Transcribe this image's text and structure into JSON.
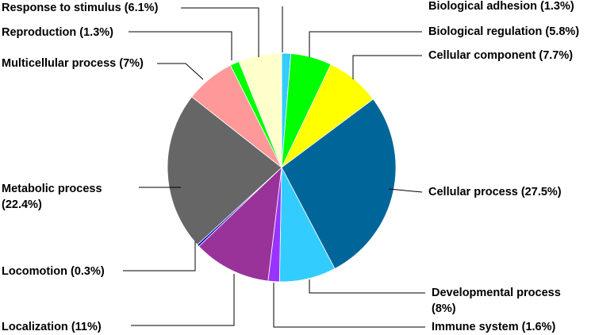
{
  "chart_data": {
    "type": "pie",
    "title": "",
    "legend": "none",
    "start": "12 o'clock",
    "direction": "clockwise",
    "slices": [
      {
        "key": "bio-adhesion",
        "label": "Biological adhesion (1.3%)",
        "value": 1.3,
        "color": "#33ccff"
      },
      {
        "key": "bio-regulation",
        "label": "Biological regulation (5.8%)",
        "value": 5.8,
        "color": "#00ff00"
      },
      {
        "key": "cellular-component",
        "label": "Cellular component (7.7%)",
        "value": 7.7,
        "color": "#ffff00"
      },
      {
        "key": "cellular-process",
        "label": "Cellular process (27.5%)",
        "value": 27.5,
        "color": "#006699"
      },
      {
        "key": "developmental",
        "label": "Developmental process (8%)",
        "value": 8.0,
        "color": "#33ccff"
      },
      {
        "key": "immune-system",
        "label": "Immune system (1.6%)",
        "value": 1.6,
        "color": "#9933ff"
      },
      {
        "key": "localization",
        "label": "Localization  (11%)",
        "value": 11.0,
        "color": "#993399"
      },
      {
        "key": "locomotion",
        "label": "Locomotion (0.3%)",
        "value": 0.3,
        "color": "#0000cc"
      },
      {
        "key": "metabolic",
        "label": "Metabolic process (22.4%)",
        "value": 22.4,
        "color": "#666666"
      },
      {
        "key": "multicellular",
        "label": "Multicellular process (7%)",
        "value": 7.0,
        "color": "#ff9999"
      },
      {
        "key": "reproduction",
        "label": "Reproduction (1.3%)",
        "value": 1.3,
        "color": "#00ff00"
      },
      {
        "key": "response-stimulus",
        "label": "Response to stimulus (6.1%)",
        "value": 6.1,
        "color": "#ffffcc"
      }
    ]
  }
}
